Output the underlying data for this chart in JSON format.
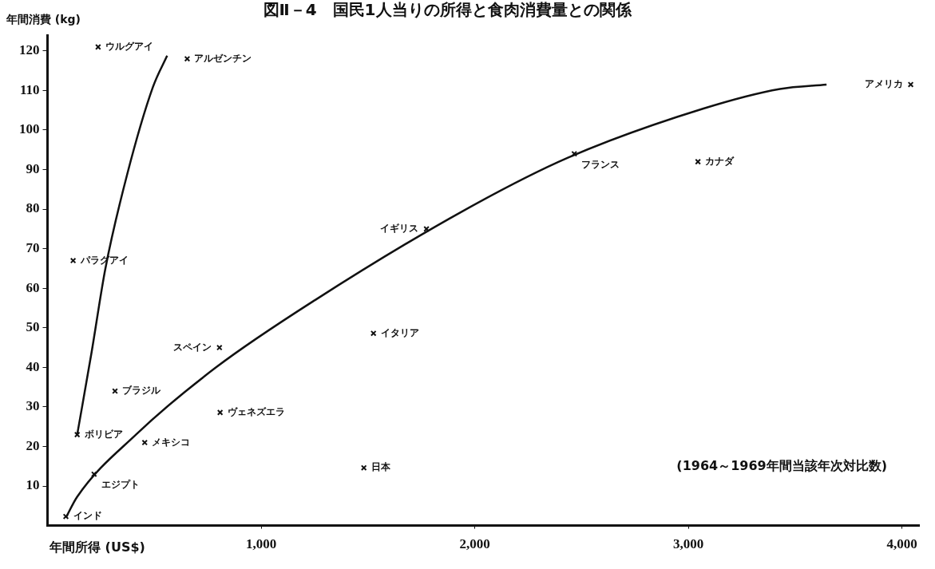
{
  "chart_data": {
    "type": "scatter",
    "title": "図Ⅱ－4　国民1人当りの所得と食肉消費量との関係",
    "xlabel": "年間所得 (US$)",
    "ylabel": "年間消費 (kg)",
    "xlim": [
      0,
      4080
    ],
    "ylim": [
      0,
      124
    ],
    "xticks": [
      {
        "value": 1000,
        "label": "1,000"
      },
      {
        "value": 2000,
        "label": "2,000"
      },
      {
        "value": 3000,
        "label": "3,000"
      },
      {
        "value": 4000,
        "label": "4,000"
      }
    ],
    "yticks": [
      10,
      20,
      30,
      40,
      50,
      60,
      70,
      80,
      90,
      100,
      110,
      120
    ],
    "grid": false,
    "legend": false,
    "line_style": "solid",
    "series": [
      {
        "marker": "cross",
        "color": "#111111",
        "x": [
          237,
          654,
          4041,
          2466,
          3045,
          1774,
          120,
          805,
          1526,
          316,
          808,
          139,
          455,
          218,
          1481,
          86
        ],
        "values": [
          121,
          118,
          111.5,
          94,
          92,
          75,
          67,
          45,
          48.6,
          34,
          28.6,
          23,
          21,
          13,
          14.6,
          2.3
        ]
      },
      {
        "type": "line",
        "marker": "none",
        "color": "#111111",
        "x": [
          139,
          206,
          271,
          372,
          493,
          560
        ],
        "values": [
          23,
          43.7,
          65,
          88.6,
          110.8,
          118.8
        ]
      },
      {
        "type": "line",
        "marker": "none",
        "color": "#111111",
        "x": [
          86,
          139,
          414,
          789,
          1252,
          1947,
          2436,
          3068,
          3429,
          3647
        ],
        "values": [
          2,
          7.3,
          23,
          40,
          57,
          79.6,
          93,
          105.4,
          110.4,
          111.5
        ]
      }
    ],
    "annotations": [
      {
        "text": "ウルグアイ",
        "x": 237,
        "y": 121
      },
      {
        "text": "アルゼンチン",
        "x": 654,
        "y": 118
      },
      {
        "text": "アメリカ",
        "x": 4041,
        "y": 111.5
      },
      {
        "text": "フランス",
        "x": 2466,
        "y": 94
      },
      {
        "text": "カナダ",
        "x": 3045,
        "y": 92
      },
      {
        "text": "イギリス",
        "x": 1774,
        "y": 75
      },
      {
        "text": "パラグアイ",
        "x": 120,
        "y": 67
      },
      {
        "text": "スペイン",
        "x": 805,
        "y": 45
      },
      {
        "text": "イタリア",
        "x": 1526,
        "y": 48.6
      },
      {
        "text": "ブラジル",
        "x": 316,
        "y": 34
      },
      {
        "text": "ヴェネズエラ",
        "x": 808,
        "y": 28.6
      },
      {
        "text": "ボリビア",
        "x": 139,
        "y": 23
      },
      {
        "text": "メキシコ",
        "x": 455,
        "y": 21
      },
      {
        "text": "エジプト",
        "x": 218,
        "y": 13
      },
      {
        "text": "日本",
        "x": 1481,
        "y": 14.6
      },
      {
        "text": "インド",
        "x": 86,
        "y": 2.3
      },
      "(1964～1969年間当該年次対比数)"
    ]
  }
}
